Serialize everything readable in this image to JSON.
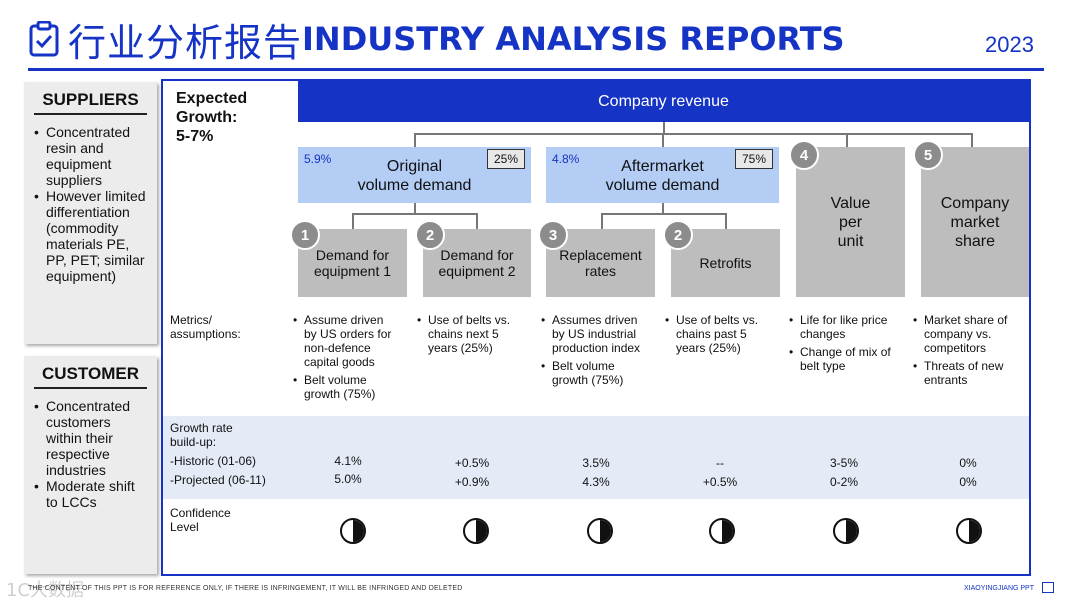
{
  "header": {
    "icon": "clipboard-check-icon",
    "title_zh": "行业分析报告",
    "title_en": "INDUSTRY ANALYSIS REPORTS",
    "year": "2023"
  },
  "suppliers": {
    "heading": "SUPPLIERS",
    "bullets": [
      "Concentrated resin and equipment suppliers",
      "However limited differentiation (commodity materials PE, PP, PET; similar equipment)"
    ]
  },
  "customer": {
    "heading": "CUSTOMER",
    "bullets": [
      "Concentrated customers within their respective industries",
      "Moderate shift to LCCs"
    ]
  },
  "growth": {
    "line1": "Expected",
    "line2": "Growth:",
    "line3": "5-7%"
  },
  "company_revenue": "Company revenue",
  "top_boxes": [
    {
      "pct": "5.9%",
      "title_line1": "Original",
      "title_line2": "volume demand",
      "share": "25%"
    },
    {
      "pct": "4.8%",
      "title_line1": "Aftermarket",
      "title_line2": "volume demand",
      "share": "75%"
    }
  ],
  "tall_boxes": [
    {
      "number": "4",
      "line1": "Value",
      "line2": "per",
      "line3": "unit"
    },
    {
      "number": "5",
      "line1": "Company",
      "line2": "market",
      "line3": "share"
    }
  ],
  "sub_boxes": [
    {
      "number": "1",
      "line1": "Demand for",
      "line2": "equipment 1"
    },
    {
      "number": "2",
      "line1": "Demand for",
      "line2": "equipment 2"
    },
    {
      "number": "3",
      "line1": "Replacement",
      "line2": "rates"
    },
    {
      "number": "2",
      "line1": "Retrofits",
      "line2": ""
    }
  ],
  "rows": {
    "metrics_label": "Metrics/ assumptions:",
    "growth_label1": "Growth rate",
    "growth_label2": "build-up:",
    "historic_label": "-Historic (01-06)",
    "projected_label": "-Projected (06-11)",
    "confidence_label1": "Confidence",
    "confidence_label2": "Level"
  },
  "metrics": [
    [
      "Assume driven by US orders for non-defence capital goods",
      "Belt volume growth (75%)"
    ],
    [
      "Use of belts vs. chains next 5 years (25%)"
    ],
    [
      "Assumes driven by US industrial production index",
      "Belt volume growth (75%)"
    ],
    [
      "Use of belts vs. chains past 5 years (25%)"
    ],
    [
      "Life for like price changes",
      "Change of mix of belt type"
    ],
    [
      "Market share of company vs. competitors",
      "Threats of new entrants"
    ]
  ],
  "historic": [
    "4.1%",
    "+0.5%",
    "3.5%",
    "--",
    "3-5%",
    "0%"
  ],
  "projected": [
    "5.0%",
    "+0.9%",
    "4.3%",
    "+0.5%",
    "0-2%",
    "0%"
  ],
  "confidence_icon": "half-filled-circle-icon",
  "confidence": [
    "half",
    "half",
    "half",
    "half",
    "half",
    "half"
  ],
  "footer": {
    "watermark": "1C大数据",
    "disclaimer": "THE CONTENT OF THIS PPT IS FOR REFERENCE ONLY, IF THERE IS INFRINGEMENT, IT WILL BE INFRINGED AND DELETED",
    "brand": "XIAOYINGJIANG PPT"
  }
}
